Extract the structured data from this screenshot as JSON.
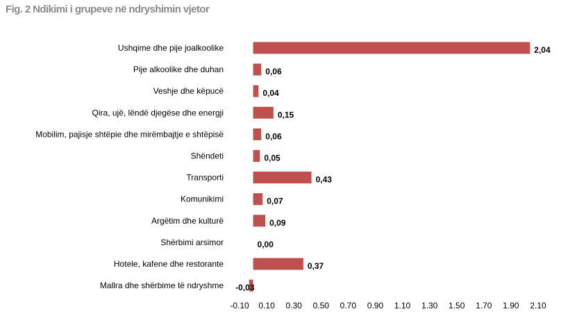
{
  "chart_data": {
    "type": "bar",
    "orientation": "horizontal",
    "title": "Fig. 2 Ndikimi i grupeve në ndryshimin vjetor",
    "xlabel": "",
    "ylabel": "",
    "categories": [
      "Ushqime dhe pije joalkoolike",
      "Pije alkoolike dhe duhan",
      "Veshje dhe këpucë",
      "Qira, ujë, lëndë djegëse dhe energji",
      "Mobilim, pajisje shtëpie dhe mirëmbajtje e shtëpisë",
      "Shëndeti",
      "Transporti",
      "Komunikimi",
      "Argëtim dhe kulturë",
      "Shërbimi arsimor",
      "Hotele, kafene dhe restorante",
      "Mallra dhe shërbime të ndryshme"
    ],
    "values": [
      2.04,
      0.06,
      0.04,
      0.15,
      0.06,
      0.05,
      0.43,
      0.07,
      0.09,
      0.0,
      0.37,
      -0.03
    ],
    "value_labels": [
      "2,04",
      "0,06",
      "0,04",
      "0,15",
      "0,06",
      "0,05",
      "0,43",
      "0,07",
      "0,09",
      "0,00",
      "0,37",
      "-0,03"
    ],
    "xlim": [
      -0.1,
      2.1
    ],
    "x_ticks": [
      -0.1,
      0.1,
      0.3,
      0.5,
      0.7,
      0.9,
      1.1,
      1.3,
      1.5,
      1.7,
      1.9,
      2.1
    ],
    "x_tick_labels": [
      "-0.10",
      "0.10",
      "0.30",
      "0.50",
      "0.70",
      "0.90",
      "1.10",
      "1.30",
      "1.50",
      "1.70",
      "1.90",
      "2.10"
    ],
    "bar_color": "#c0504d",
    "grid": false,
    "legend": "none"
  }
}
